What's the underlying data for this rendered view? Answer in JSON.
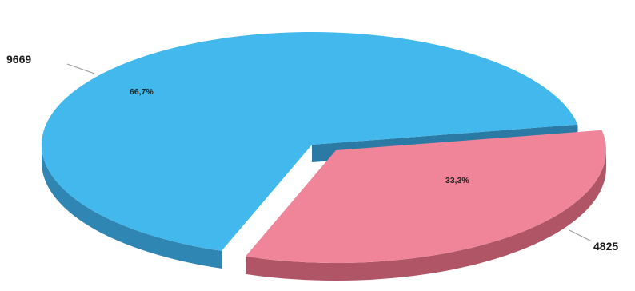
{
  "chart_data": {
    "type": "pie",
    "three_d": true,
    "title": "",
    "slices": [
      {
        "value": 9669,
        "label": "9669",
        "percent_label": "66,7%",
        "color": "#43b8ec",
        "side_color": "#2f86b3"
      },
      {
        "value": 4825,
        "label": "4825",
        "percent_label": "33,3%",
        "color": "#f08498",
        "side_color": "#b05566"
      }
    ],
    "exploded_slice": 1,
    "legend": "none"
  }
}
